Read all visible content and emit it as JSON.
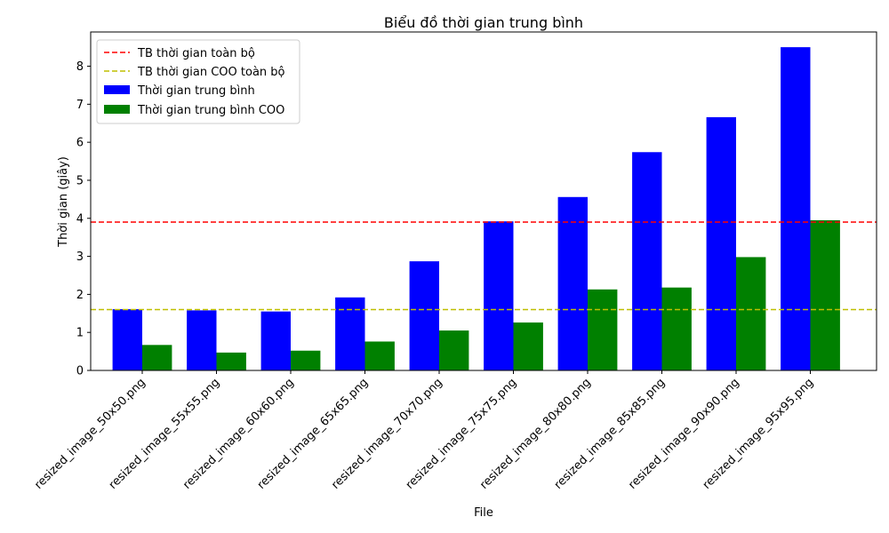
{
  "chart_data": {
    "type": "bar",
    "title": "Biểu đồ thời gian trung bình",
    "xlabel": "File",
    "ylabel": "Thời gian (giây)",
    "categories": [
      "resized_image_50x50.png",
      "resized_image_55x55.png",
      "resized_image_60x60.png",
      "resized_image_65x65.png",
      "resized_image_70x70.png",
      "resized_image_75x75.png",
      "resized_image_80x80.png",
      "resized_image_85x85.png",
      "resized_image_90x90.png",
      "resized_image_95x95.png"
    ],
    "series": [
      {
        "name": "Thời gian trung bình",
        "color": "#0000ff",
        "values": [
          1.61,
          1.58,
          1.55,
          1.92,
          2.87,
          3.92,
          4.56,
          5.74,
          6.66,
          8.5
        ]
      },
      {
        "name": "Thời gian trung bình COO",
        "color": "#008000",
        "values": [
          0.67,
          0.47,
          0.52,
          0.76,
          1.05,
          1.26,
          2.13,
          2.18,
          2.98,
          3.95
        ]
      }
    ],
    "reference_lines": [
      {
        "name": "TB thời gian toàn bộ",
        "value": 3.9,
        "color": "#ff0000",
        "style": "dashed"
      },
      {
        "name": "TB thời gian COO toàn bộ",
        "value": 1.6,
        "color": "#bfbf00",
        "style": "dashed"
      }
    ],
    "ylim": [
      0,
      8.9
    ],
    "yticks": [
      0,
      1,
      2,
      3,
      4,
      5,
      6,
      7,
      8
    ],
    "grid": false,
    "legend_position": "top-left"
  }
}
